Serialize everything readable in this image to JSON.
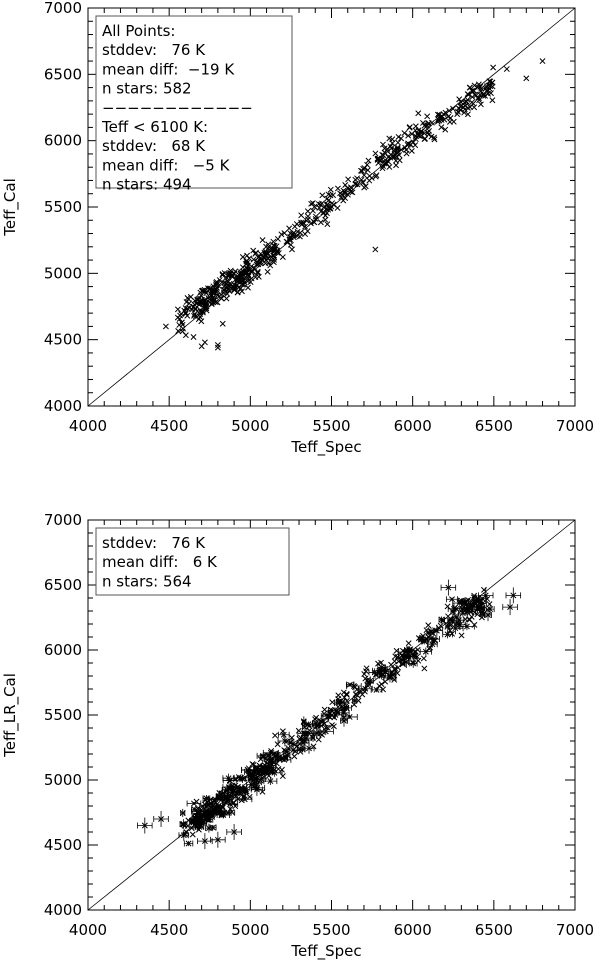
{
  "chart_data": [
    {
      "type": "scatter",
      "panel": "top",
      "xlabel": "Teff_Spec",
      "ylabel": "Teff_Cal",
      "xlim": [
        4000,
        7000
      ],
      "ylim": [
        4000,
        7000
      ],
      "x_ticks": [
        "4000",
        "4500",
        "5000",
        "5500",
        "6000",
        "6500",
        "7000"
      ],
      "y_ticks": [
        "4000",
        "4500",
        "5000",
        "5500",
        "6000",
        "6500",
        "7000"
      ],
      "marker": "x",
      "reference_line": "one-to-one",
      "error_bars": false,
      "legend_placement": "top-left",
      "legend_lines": [
        "All Points:",
        "stddev:   76 K",
        "mean diff:  −19 K",
        "n stars: 582",
        "−−−−−−−−−−−−",
        "Teff < 6100 K:",
        "stddev:   68 K",
        "mean diff:   −5 K",
        "n stars: 494"
      ],
      "series": [
        {
          "trend_points": [
            [
              4500,
              4600
            ],
            [
              4700,
              4780
            ],
            [
              5000,
              5020
            ],
            [
              5300,
              5330
            ],
            [
              5600,
              5630
            ],
            [
              5900,
              5930
            ],
            [
              6200,
              6180
            ],
            [
              6400,
              6350
            ],
            [
              6600,
              6450
            ],
            [
              6800,
              6580
            ]
          ],
          "outliers": [
            [
              4480,
              4600
            ],
            [
              4700,
              4450
            ],
            [
              4720,
              4480
            ],
            [
              4800,
              4440
            ],
            [
              4800,
              4460
            ],
            [
              5770,
              5180
            ],
            [
              6580,
              6540
            ],
            [
              6700,
              6470
            ],
            [
              6800,
              6600
            ],
            [
              4650,
              4520
            ],
            [
              4830,
              4620
            ]
          ]
        }
      ]
    },
    {
      "type": "scatter",
      "panel": "bottom",
      "xlabel": "Teff_Spec",
      "ylabel": "Teff_LR_Cal",
      "xlim": [
        4000,
        7000
      ],
      "ylim": [
        4000,
        7000
      ],
      "x_ticks": [
        "4000",
        "4500",
        "5000",
        "5500",
        "6000",
        "6500",
        "7000"
      ],
      "y_ticks": [
        "4000",
        "4500",
        "5000",
        "5500",
        "6000",
        "6500",
        "7000"
      ],
      "marker": "x",
      "reference_line": "one-to-one",
      "error_bars": true,
      "legend_placement": "top-left",
      "legend_lines": [
        "stddev:   76 K",
        "mean diff:   6 K",
        "n stars: 564"
      ],
      "series": [
        {
          "trend_points": [
            [
              4600,
              4650
            ],
            [
              4800,
              4800
            ],
            [
              5000,
              5000
            ],
            [
              5300,
              5280
            ],
            [
              5600,
              5600
            ],
            [
              5900,
              5900
            ],
            [
              6100,
              6050
            ],
            [
              6300,
              6300
            ],
            [
              6500,
              6350
            ],
            [
              6600,
              6400
            ]
          ],
          "outliers": [
            [
              4350,
              4650
            ],
            [
              4450,
              4700
            ],
            [
              4720,
              4530
            ],
            [
              4800,
              4540
            ],
            [
              4900,
              4600
            ],
            [
              6220,
              6480
            ],
            [
              6450,
              6420
            ],
            [
              6600,
              6330
            ],
            [
              6620,
              6420
            ]
          ]
        }
      ]
    }
  ]
}
